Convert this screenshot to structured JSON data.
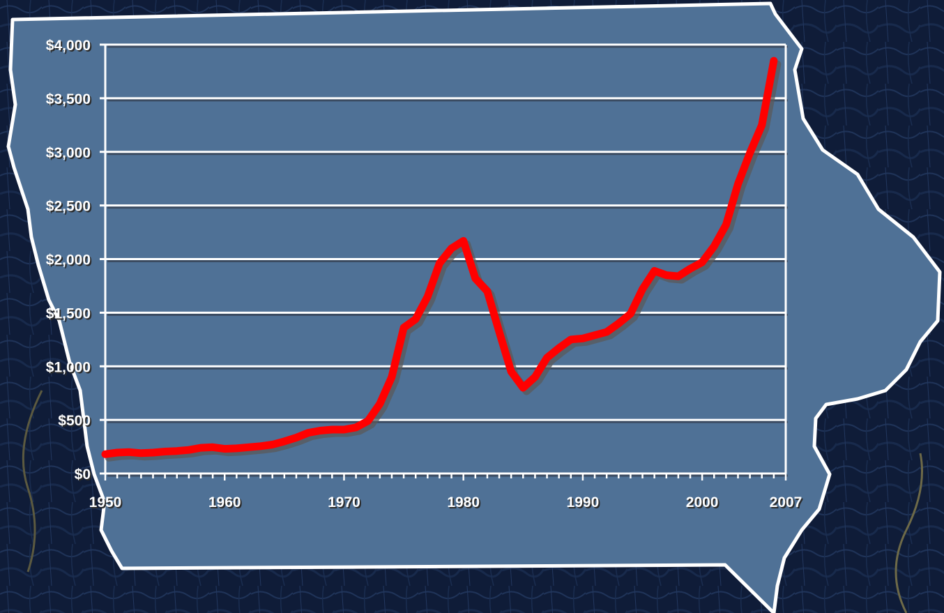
{
  "chart_data": {
    "type": "line",
    "title": "",
    "xlabel": "",
    "ylabel": "",
    "xlim": [
      1950,
      2007
    ],
    "ylim": [
      0,
      4000
    ],
    "grid": true,
    "x_tick_labels": [
      "1950",
      "1960",
      "1970",
      "1980",
      "1990",
      "2000",
      "2007"
    ],
    "y_tick_labels": [
      "$0",
      "$500",
      "$1,000",
      "$1,500",
      "$2,000",
      "$2,500",
      "$3,000",
      "$3,500",
      "$4,000"
    ],
    "series": [
      {
        "color": "#ff0000",
        "points": [
          [
            1950,
            180
          ],
          [
            1951,
            195
          ],
          [
            1952,
            200
          ],
          [
            1953,
            190
          ],
          [
            1954,
            195
          ],
          [
            1955,
            205
          ],
          [
            1956,
            210
          ],
          [
            1957,
            220
          ],
          [
            1958,
            240
          ],
          [
            1959,
            245
          ],
          [
            1960,
            230
          ],
          [
            1961,
            235
          ],
          [
            1962,
            245
          ],
          [
            1963,
            255
          ],
          [
            1964,
            270
          ],
          [
            1965,
            300
          ],
          [
            1966,
            335
          ],
          [
            1967,
            380
          ],
          [
            1968,
            400
          ],
          [
            1969,
            410
          ],
          [
            1970,
            410
          ],
          [
            1971,
            430
          ],
          [
            1972,
            490
          ],
          [
            1973,
            650
          ],
          [
            1974,
            900
          ],
          [
            1975,
            1360
          ],
          [
            1976,
            1440
          ],
          [
            1977,
            1650
          ],
          [
            1978,
            1960
          ],
          [
            1979,
            2100
          ],
          [
            1980,
            2170
          ],
          [
            1981,
            1820
          ],
          [
            1982,
            1700
          ],
          [
            1983,
            1320
          ],
          [
            1984,
            950
          ],
          [
            1985,
            800
          ],
          [
            1986,
            900
          ],
          [
            1987,
            1080
          ],
          [
            1988,
            1170
          ],
          [
            1989,
            1250
          ],
          [
            1990,
            1260
          ],
          [
            1991,
            1290
          ],
          [
            1992,
            1320
          ],
          [
            1993,
            1400
          ],
          [
            1994,
            1490
          ],
          [
            1995,
            1720
          ],
          [
            1996,
            1890
          ],
          [
            1997,
            1850
          ],
          [
            1998,
            1840
          ],
          [
            1999,
            1910
          ],
          [
            2000,
            1970
          ],
          [
            2001,
            2120
          ],
          [
            2002,
            2320
          ],
          [
            2003,
            2700
          ],
          [
            2004,
            2990
          ],
          [
            2005,
            3250
          ],
          [
            2006,
            3850
          ]
        ]
      }
    ]
  }
}
